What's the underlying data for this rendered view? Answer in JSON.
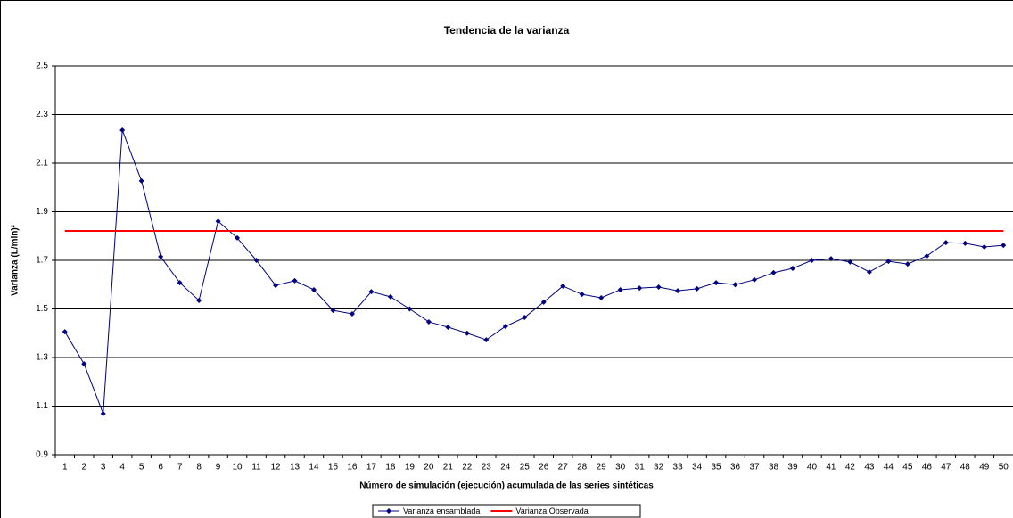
{
  "chart_data": {
    "type": "line",
    "title": "Tendencia de la varianza",
    "x_label": "Número de simulación (ejecución) acumulada de las series sintéticas",
    "y_label": "Varianza (L/min)²",
    "categories": [
      1,
      2,
      3,
      4,
      5,
      6,
      7,
      8,
      9,
      10,
      11,
      12,
      13,
      14,
      15,
      16,
      17,
      18,
      19,
      20,
      21,
      22,
      23,
      24,
      25,
      26,
      27,
      28,
      29,
      30,
      31,
      32,
      33,
      34,
      35,
      36,
      37,
      38,
      39,
      40,
      41,
      42,
      43,
      44,
      45,
      46,
      47,
      48,
      49,
      50
    ],
    "series": [
      {
        "name": "Varianza ensamblada",
        "color": "#000080",
        "marker": true,
        "values": [
          1.406,
          1.274,
          1.069,
          2.236,
          2.027,
          1.715,
          1.608,
          1.535,
          1.861,
          1.792,
          1.7,
          1.597,
          1.616,
          1.579,
          1.494,
          1.48,
          1.571,
          1.55,
          1.5,
          1.447,
          1.425,
          1.4,
          1.373,
          1.428,
          1.465,
          1.528,
          1.594,
          1.56,
          1.546,
          1.579,
          1.586,
          1.59,
          1.575,
          1.583,
          1.608,
          1.6,
          1.62,
          1.649,
          1.667,
          1.7,
          1.707,
          1.693,
          1.652,
          1.696,
          1.685,
          1.718,
          1.773,
          1.77,
          1.755,
          1.762
        ]
      },
      {
        "name": "Varianza Observada",
        "color": "#ff0000",
        "marker": false,
        "values": [
          1.821,
          1.821,
          1.821,
          1.821,
          1.821,
          1.821,
          1.821,
          1.821,
          1.821,
          1.821,
          1.821,
          1.821,
          1.821,
          1.821,
          1.821,
          1.821,
          1.821,
          1.821,
          1.821,
          1.821,
          1.821,
          1.821,
          1.821,
          1.821,
          1.821,
          1.821,
          1.821,
          1.821,
          1.821,
          1.821,
          1.821,
          1.821,
          1.821,
          1.821,
          1.821,
          1.821,
          1.821,
          1.821,
          1.821,
          1.821,
          1.821,
          1.821,
          1.821,
          1.821,
          1.821,
          1.821,
          1.821,
          1.821,
          1.821,
          1.821
        ]
      }
    ],
    "ylim": [
      0.9,
      2.5
    ],
    "yticks": [
      0.9,
      1.1,
      1.3,
      1.5,
      1.7,
      1.9,
      2.1,
      2.3,
      2.5
    ],
    "grid": true,
    "legend": "bottom"
  }
}
